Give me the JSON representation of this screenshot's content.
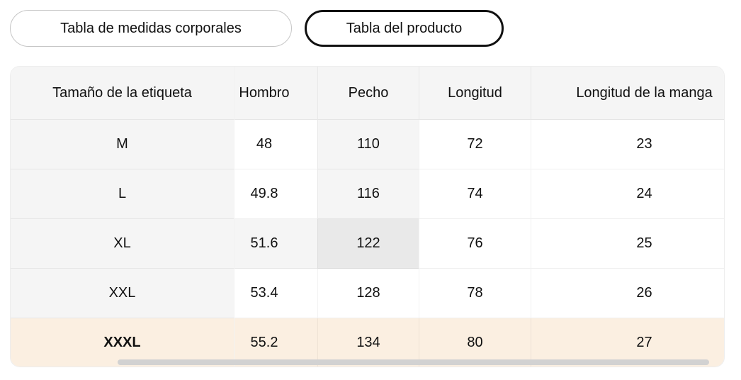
{
  "tabs": [
    {
      "label": "Tabla de medidas corporales",
      "selected": false
    },
    {
      "label": "Tabla del producto",
      "selected": true
    }
  ],
  "table": {
    "columns": [
      "Tamaño de la etiqueta",
      "Hombro",
      "Pecho",
      "Longitud",
      "Longitud de la manga"
    ],
    "rows": [
      {
        "label": "M",
        "values": [
          "48",
          "110",
          "72",
          "23"
        ]
      },
      {
        "label": "L",
        "values": [
          "49.8",
          "116",
          "74",
          "24"
        ]
      },
      {
        "label": "XL",
        "values": [
          "51.6",
          "122",
          "76",
          "25"
        ]
      },
      {
        "label": "XXL",
        "values": [
          "53.4",
          "128",
          "78",
          "26"
        ]
      },
      {
        "label": "XXXL",
        "values": [
          "55.2",
          "134",
          "80",
          "27"
        ],
        "highlighted": true
      }
    ],
    "selected_cell": {
      "row": "XL",
      "column": "Pecho",
      "value": "122"
    }
  },
  "colors": {
    "header_bg": "#f5f5f5",
    "column_highlight": "#f5f5f5",
    "selected_cell": "#e9e9e9",
    "recommended_row": "#fbefe1",
    "selected_tab_border": "#111111",
    "unselected_tab_border": "#c6c6c6",
    "scrollbar_thumb": "#d2d2d2"
  }
}
